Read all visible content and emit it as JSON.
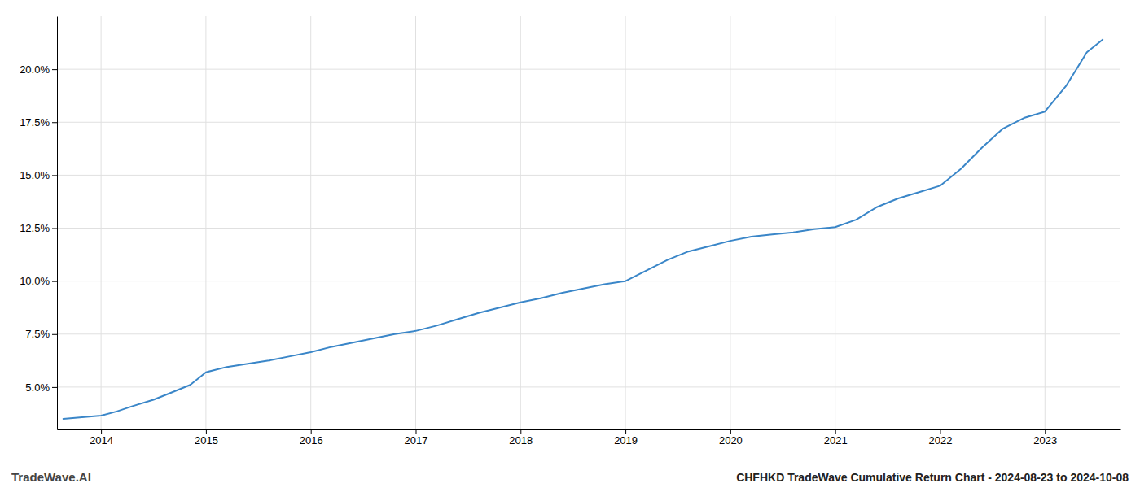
{
  "chart_data": {
    "type": "line",
    "title": "CHFHKD TradeWave Cumulative Return Chart - 2024-08-23 to 2024-10-08",
    "annotations": [
      "TradeWave.AI"
    ],
    "color": "#3a86c8",
    "x": [
      2013.64,
      2014.0,
      2014.15,
      2014.3,
      2014.5,
      2014.65,
      2014.85,
      2015.0,
      2015.2,
      2015.4,
      2015.6,
      2015.8,
      2016.0,
      2016.2,
      2016.4,
      2016.6,
      2016.8,
      2017.0,
      2017.2,
      2017.4,
      2017.6,
      2017.8,
      2018.0,
      2018.2,
      2018.4,
      2018.6,
      2018.8,
      2019.0,
      2019.2,
      2019.4,
      2019.6,
      2019.8,
      2020.0,
      2020.2,
      2020.4,
      2020.6,
      2020.8,
      2021.0,
      2021.2,
      2021.4,
      2021.6,
      2021.8,
      2022.0,
      2022.2,
      2022.4,
      2022.6,
      2022.8,
      2023.0,
      2023.2,
      2023.4,
      2023.55
    ],
    "values": [
      3.5,
      3.65,
      3.85,
      4.1,
      4.4,
      4.7,
      5.1,
      5.7,
      5.95,
      6.1,
      6.25,
      6.45,
      6.65,
      6.9,
      7.1,
      7.3,
      7.5,
      7.65,
      7.9,
      8.2,
      8.5,
      8.75,
      9.0,
      9.2,
      9.45,
      9.65,
      9.85,
      10.0,
      10.5,
      11.0,
      11.4,
      11.65,
      11.9,
      12.1,
      12.2,
      12.3,
      12.45,
      12.55,
      12.9,
      13.5,
      13.9,
      14.2,
      14.5,
      15.3,
      16.3,
      17.2,
      17.7,
      18.0,
      19.2,
      20.8,
      21.4
    ],
    "xlim": [
      2013.58,
      2023.72
    ],
    "xticks": [
      2014,
      2015,
      2016,
      2017,
      2018,
      2019,
      2020,
      2021,
      2022,
      2023
    ],
    "ylim": [
      3.0,
      22.5
    ],
    "yticks": [
      {
        "value": 5.0,
        "label": "5.0%"
      },
      {
        "value": 7.5,
        "label": "7.5%"
      },
      {
        "value": 10.0,
        "label": "10.0%"
      },
      {
        "value": 12.5,
        "label": "12.5%"
      },
      {
        "value": 15.0,
        "label": "15.0%"
      },
      {
        "value": 17.5,
        "label": "17.5%"
      },
      {
        "value": 20.0,
        "label": "20.0%"
      }
    ],
    "grid": true
  }
}
